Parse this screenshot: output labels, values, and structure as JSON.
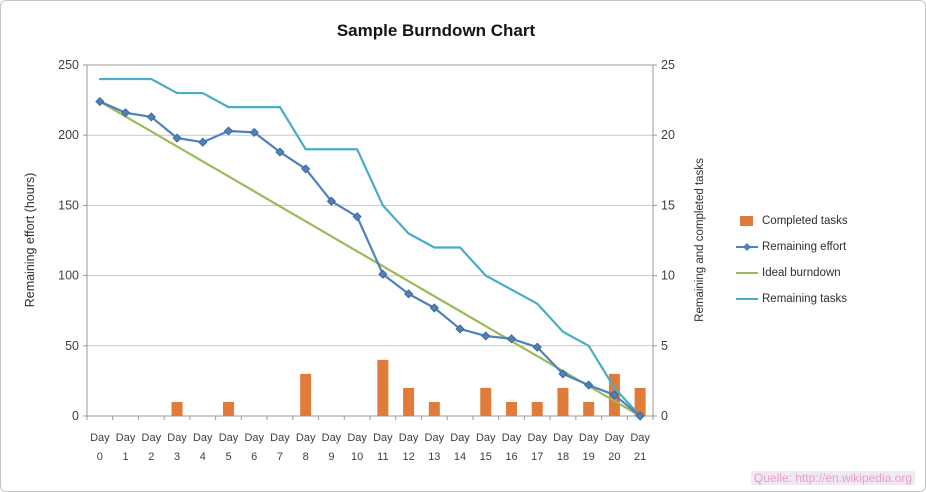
{
  "watermark": "Quelle: http://en.wikipedia.org",
  "chart_data": {
    "type": "combo",
    "title": "Sample Burndown Chart",
    "grid": true,
    "legend_position": "right",
    "categories": [
      "Day 0",
      "Day 1",
      "Day 2",
      "Day 3",
      "Day 4",
      "Day 5",
      "Day 6",
      "Day 7",
      "Day 8",
      "Day 9",
      "Day 10",
      "Day 11",
      "Day 12",
      "Day 13",
      "Day 14",
      "Day 15",
      "Day 16",
      "Day 17",
      "Day 18",
      "Day 19",
      "Day 20",
      "Day 21"
    ],
    "left_axis": {
      "label": "Remaining effort (hours)",
      "min": 0,
      "max": 250,
      "step": 50
    },
    "right_axis": {
      "label": "Remaining and completed tasks",
      "min": 0,
      "max": 25,
      "step": 5
    },
    "series": [
      {
        "name": "Completed tasks",
        "type": "bar",
        "axis": "right",
        "color": "#E07B39",
        "values": [
          0,
          0,
          0,
          1,
          0,
          1,
          0,
          0,
          3,
          0,
          0,
          4,
          2,
          1,
          0,
          2,
          1,
          1,
          2,
          1,
          3,
          2
        ]
      },
      {
        "name": "Remaining effort",
        "type": "line",
        "axis": "left",
        "color": "#4F81BD",
        "marker": "diamond",
        "values": [
          224,
          216,
          213,
          198,
          195,
          203,
          202,
          188,
          176,
          153,
          142,
          101,
          87,
          77,
          62,
          57,
          55,
          49,
          30,
          22,
          15,
          0
        ]
      },
      {
        "name": "Ideal burndown",
        "type": "line",
        "axis": "left",
        "color": "#9BBB59",
        "values": [
          224,
          213.3,
          202.7,
          192,
          181.3,
          170.7,
          160,
          149.3,
          138.7,
          128,
          117.3,
          106.7,
          96,
          85.3,
          74.7,
          64,
          53.3,
          42.7,
          32,
          21.3,
          10.7,
          0
        ]
      },
      {
        "name": "Remaining tasks",
        "type": "line",
        "axis": "right",
        "color": "#4BACC6",
        "values": [
          24,
          24,
          24,
          23,
          23,
          22,
          22,
          22,
          19,
          19,
          19,
          15,
          13,
          12,
          12,
          10,
          9,
          8,
          6,
          5,
          2,
          0
        ]
      }
    ]
  }
}
